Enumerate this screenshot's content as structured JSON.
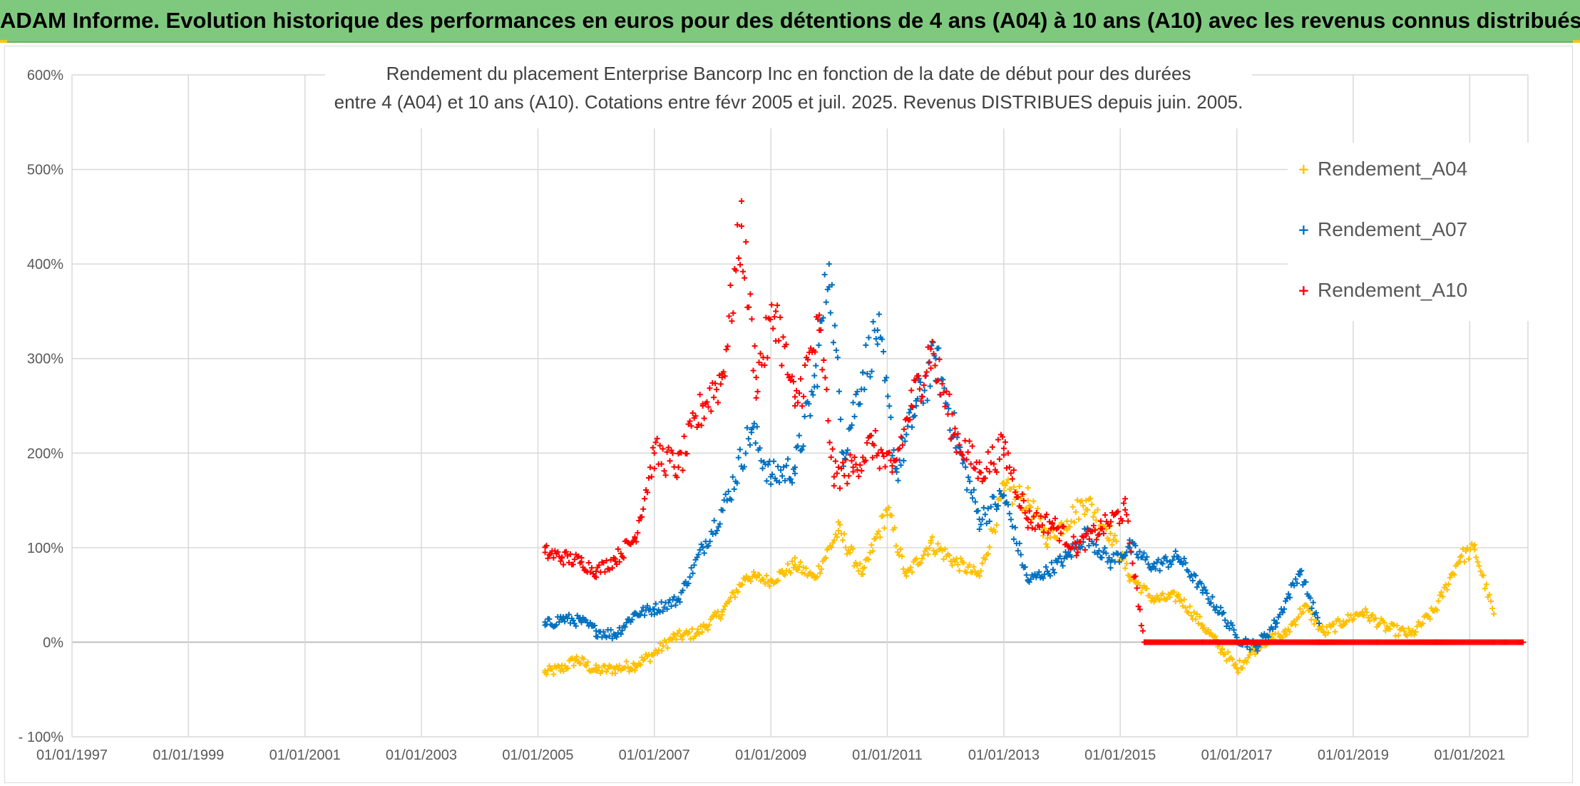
{
  "banner": {
    "title": "ADAM Informe. Evolution historique des performances en euros pour des détentions de 4 ans (A04) à 10 ans (A10) avec les revenus connus distribués"
  },
  "colors": {
    "banner_bg": "#7fc97f",
    "A04": "#ffc000",
    "A07": "#0070c0",
    "A10": "#ff0000",
    "grid": "#d9d9d9",
    "zero_line": "#bfbfbf"
  },
  "chart_data": {
    "type": "scatter",
    "title": "Rendement du placement Enterprise Bancorp Inc en fonction de la date de début pour des durées",
    "subtitle": "entre 4 (A04) et 10 ans (A10). Cotations entre févr 2005 et juil. 2025. Revenus DISTRIBUES depuis juin. 2005.",
    "xlabel": "",
    "ylabel": "",
    "x_type": "date",
    "xlim": [
      "1997-01-01",
      "2022-01-01"
    ],
    "ylim": [
      -100,
      600
    ],
    "y_unit": "%",
    "y_ticks": [
      -100,
      0,
      100,
      200,
      300,
      400,
      500,
      600
    ],
    "y_tick_labels": [
      "- 100%",
      "0%",
      "100%",
      "200%",
      "300%",
      "400%",
      "500%",
      "600%"
    ],
    "x_ticks": [
      "1997-01-01",
      "1999-01-01",
      "2001-01-01",
      "2003-01-01",
      "2005-01-01",
      "2007-01-01",
      "2009-01-01",
      "2011-01-01",
      "2013-01-01",
      "2015-01-01",
      "2017-01-01",
      "2019-01-01",
      "2021-01-01"
    ],
    "x_tick_labels": [
      "01/01/1997",
      "01/01/1999",
      "01/01/2001",
      "01/01/2003",
      "01/01/2005",
      "01/01/2007",
      "01/01/2009",
      "01/01/2011",
      "01/01/2013",
      "01/01/2015",
      "01/01/2017",
      "01/01/2019",
      "01/01/2021"
    ],
    "grid": true,
    "marker": "+",
    "legend_position": "right",
    "series": [
      {
        "name": "Rendement_A04",
        "color": "#ffc000",
        "points": [
          [
            "2005-02-15",
            -32
          ],
          [
            "2005-06-01",
            -28
          ],
          [
            "2005-09-01",
            -18
          ],
          [
            "2006-01-01",
            -30
          ],
          [
            "2006-05-01",
            -28
          ],
          [
            "2006-09-01",
            -24
          ],
          [
            "2007-01-01",
            -12
          ],
          [
            "2007-05-01",
            5
          ],
          [
            "2007-10-01",
            10
          ],
          [
            "2008-03-01",
            32
          ],
          [
            "2008-08-01",
            70
          ],
          [
            "2009-01-01",
            65
          ],
          [
            "2009-06-01",
            82
          ],
          [
            "2009-10-01",
            68
          ],
          [
            "2010-03-01",
            118
          ],
          [
            "2010-08-01",
            72
          ],
          [
            "2011-01-01",
            140
          ],
          [
            "2011-05-01",
            70
          ],
          [
            "2011-10-01",
            105
          ],
          [
            "2012-03-01",
            85
          ],
          [
            "2012-08-01",
            70
          ],
          [
            "2013-01-01",
            160
          ],
          [
            "2013-06-01",
            150
          ],
          [
            "2013-10-01",
            110
          ],
          [
            "2014-02-01",
            128
          ],
          [
            "2014-06-01",
            150
          ],
          [
            "2014-11-01",
            115
          ],
          [
            "2015-03-01",
            70
          ],
          [
            "2015-08-01",
            45
          ],
          [
            "2016-01-01",
            48
          ],
          [
            "2016-06-01",
            18
          ],
          [
            "2016-10-01",
            -8
          ],
          [
            "2017-01-01",
            -28
          ],
          [
            "2017-06-01",
            0
          ],
          [
            "2017-11-01",
            8
          ],
          [
            "2018-03-01",
            38
          ],
          [
            "2018-07-01",
            10
          ],
          [
            "2018-11-01",
            22
          ],
          [
            "2019-03-01",
            32
          ],
          [
            "2019-08-01",
            15
          ],
          [
            "2020-01-01",
            8
          ],
          [
            "2020-06-01",
            35
          ],
          [
            "2020-11-01",
            90
          ],
          [
            "2021-02-01",
            98
          ],
          [
            "2021-06-01",
            30
          ]
        ]
      },
      {
        "name": "Rendement_A07",
        "color": "#0070c0",
        "points": [
          [
            "2005-02-15",
            18
          ],
          [
            "2005-06-01",
            25
          ],
          [
            "2005-10-01",
            22
          ],
          [
            "2006-01-01",
            12
          ],
          [
            "2006-05-01",
            8
          ],
          [
            "2006-09-01",
            30
          ],
          [
            "2007-01-01",
            35
          ],
          [
            "2007-06-01",
            45
          ],
          [
            "2007-11-01",
            100
          ],
          [
            "2008-04-01",
            150
          ],
          [
            "2008-09-01",
            225
          ],
          [
            "2009-01-01",
            175
          ],
          [
            "2009-06-01",
            185
          ],
          [
            "2009-10-01",
            270
          ],
          [
            "2010-01-01",
            400
          ],
          [
            "2010-04-01",
            200
          ],
          [
            "2010-08-01",
            285
          ],
          [
            "2010-11-01",
            330
          ],
          [
            "2011-03-01",
            180
          ],
          [
            "2011-07-01",
            250
          ],
          [
            "2011-11-01",
            300
          ],
          [
            "2012-04-01",
            200
          ],
          [
            "2012-08-01",
            130
          ],
          [
            "2013-01-01",
            155
          ],
          [
            "2013-06-01",
            65
          ],
          [
            "2013-10-01",
            75
          ],
          [
            "2014-02-01",
            90
          ],
          [
            "2014-06-01",
            115
          ],
          [
            "2014-11-01",
            85
          ],
          [
            "2015-03-01",
            100
          ],
          [
            "2015-08-01",
            80
          ],
          [
            "2016-01-01",
            90
          ],
          [
            "2016-06-01",
            55
          ],
          [
            "2016-10-01",
            30
          ],
          [
            "2017-01-01",
            5
          ],
          [
            "2017-05-01",
            -5
          ],
          [
            "2017-09-01",
            20
          ],
          [
            "2018-02-01",
            75
          ],
          [
            "2018-06-01",
            20
          ]
        ]
      },
      {
        "name": "Rendement_A10",
        "color": "#ff0000",
        "points": [
          [
            "2005-02-15",
            95
          ],
          [
            "2005-06-01",
            90
          ],
          [
            "2005-10-01",
            85
          ],
          [
            "2006-01-01",
            75
          ],
          [
            "2006-05-01",
            88
          ],
          [
            "2006-09-01",
            110
          ],
          [
            "2007-01-01",
            200
          ],
          [
            "2007-06-01",
            185
          ],
          [
            "2007-11-01",
            250
          ],
          [
            "2008-03-01",
            280
          ],
          [
            "2008-07-01",
            440
          ],
          [
            "2008-10-01",
            280
          ],
          [
            "2009-02-01",
            350
          ],
          [
            "2009-06-01",
            250
          ],
          [
            "2009-11-01",
            330
          ],
          [
            "2010-02-01",
            175
          ],
          [
            "2010-06-01",
            185
          ],
          [
            "2010-10-01",
            210
          ],
          [
            "2011-02-01",
            180
          ],
          [
            "2011-06-01",
            250
          ],
          [
            "2011-10-01",
            310
          ],
          [
            "2012-03-01",
            220
          ],
          [
            "2012-08-01",
            180
          ],
          [
            "2013-01-01",
            205
          ],
          [
            "2013-06-01",
            130
          ],
          [
            "2013-11-01",
            125
          ],
          [
            "2014-04-01",
            100
          ],
          [
            "2014-09-01",
            120
          ],
          [
            "2015-02-01",
            140
          ],
          [
            "2015-06-01",
            0
          ],
          [
            "2016-06-01",
            0
          ],
          [
            "2017-06-01",
            0
          ],
          [
            "2018-06-01",
            0
          ],
          [
            "2019-06-01",
            0
          ],
          [
            "2020-06-01",
            0
          ],
          [
            "2021-06-01",
            0
          ],
          [
            "2021-12-01",
            0
          ]
        ]
      }
    ]
  }
}
